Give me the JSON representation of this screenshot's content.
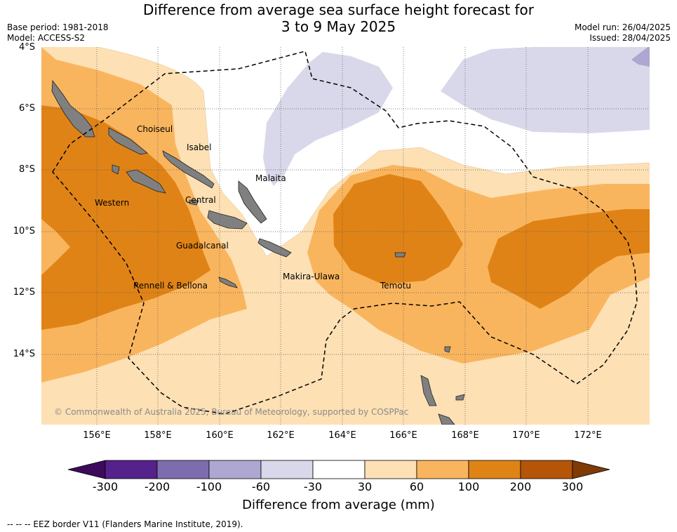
{
  "header": {
    "title_line1": "Difference from average sea surface height forecast for",
    "title_line2": "3 to 9 May 2025",
    "base_period": "Base period: 1981-2018",
    "model": "Model: ACCESS-S2",
    "model_run": "Model run: 26/04/2025",
    "issued": "Issued: 28/04/2025"
  },
  "map": {
    "lat_labels": [
      "4°S",
      "6°S",
      "8°S",
      "10°S",
      "12°S",
      "14°S"
    ],
    "lon_labels": [
      "156°E",
      "158°E",
      "160°E",
      "162°E",
      "164°E",
      "166°E",
      "168°E",
      "170°E",
      "172°E"
    ],
    "places": {
      "choiseul": "Choiseul",
      "isabel": "Isabel",
      "malaita": "Malaita",
      "western": "Western",
      "central": "Central",
      "guadalcanal": "Guadalcanal",
      "makira": "Makira-Ulawa",
      "rennell": "Rennell & Bellona",
      "temotu": "Temotu"
    },
    "credit": "© Commonwealth of Australia 2025, Bureau of Meteorology, supported by COSPPac",
    "colors": {
      "land": "#808080",
      "c30_60": "#fde0b4",
      "c60_100": "#f9b55e",
      "c100_200": "#e08316",
      "cm30_m60": "#d8d8ea"
    }
  },
  "colorbar": {
    "ticks": [
      "-300",
      "-200",
      "-100",
      "-60",
      "-30",
      "30",
      "60",
      "100",
      "200",
      "300"
    ],
    "colors": [
      "#3d0b5b",
      "#54228a",
      "#7d6daf",
      "#ada7d1",
      "#d8d8ea",
      "#ffffff",
      "#fde0b4",
      "#f9b55e",
      "#e08316",
      "#b45508",
      "#7f3a06"
    ],
    "title": "Difference from average (mm)"
  },
  "legend": {
    "eez_note": "--  --  -- EEZ border V11 (Flanders Marine Institute, 2019)."
  }
}
